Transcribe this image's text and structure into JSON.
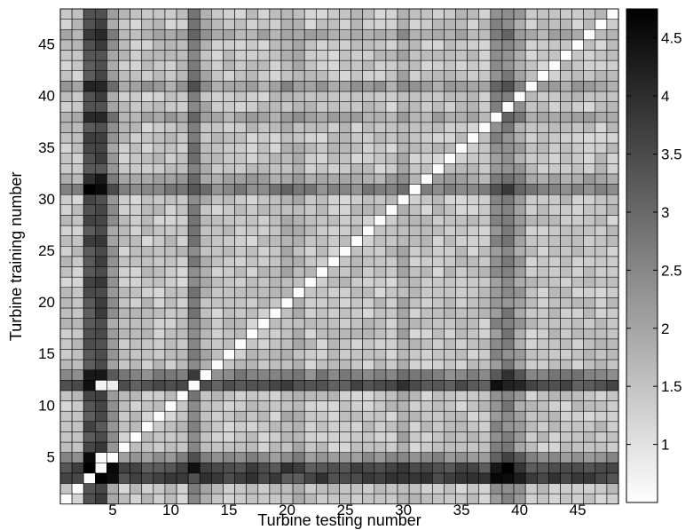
{
  "chart_data": {
    "type": "heatmap",
    "title": "",
    "xlabel": "Turbine testing number",
    "ylabel": "Turbine training number",
    "xlim": [
      1,
      48
    ],
    "ylim": [
      1,
      48
    ],
    "x_ticks": [
      "5",
      "10",
      "15",
      "20",
      "25",
      "30",
      "35",
      "40",
      "45"
    ],
    "x_tick_values": [
      5,
      10,
      15,
      20,
      25,
      30,
      35,
      40,
      45
    ],
    "y_ticks": [
      "5",
      "10",
      "15",
      "20",
      "25",
      "30",
      "35",
      "40",
      "45"
    ],
    "y_tick_values": [
      5,
      10,
      15,
      20,
      25,
      30,
      35,
      40,
      45
    ],
    "colorbar": {
      "min": 0.5,
      "max": 4.75,
      "ticks": [
        "1",
        "1.5",
        "2",
        "2.5",
        "3",
        "3.5",
        "4",
        "4.5"
      ],
      "tick_values": [
        1,
        1.5,
        2,
        2.5,
        3,
        3.5,
        4,
        4.5
      ],
      "colormap": "gray-reversed"
    },
    "grid": true,
    "colors": {
      "high": "#000000",
      "low": "#ffffff",
      "gridline": "#000000"
    },
    "base_value": 1.45,
    "row_strength": {
      "3": 2.2,
      "4": 2.0,
      "5": 0.9,
      "12": 1.9,
      "13": 1.1,
      "31": 1.1,
      "32": 0.5,
      "38": 0.5,
      "41": 0.6,
      "46": 0.4
    },
    "col_strength": {
      "3": 2.0,
      "4": 2.1,
      "5": 0.7,
      "12": 1.2,
      "13": 0.3,
      "20": 0.3,
      "21": 0.3,
      "30": 0.4,
      "38": 0.9,
      "39": 1.1,
      "40": 0.6
    },
    "specials": [
      [
        3,
        4,
        4.7
      ],
      [
        4,
        5,
        4.6
      ],
      [
        5,
        4,
        0.6
      ],
      [
        4,
        4,
        0.6
      ],
      [
        12,
        3,
        4.5
      ],
      [
        12,
        4,
        0.7
      ],
      [
        12,
        5,
        0.8
      ],
      [
        3,
        12,
        3.4
      ],
      [
        3,
        21,
        3.2
      ],
      [
        3,
        20,
        3.2
      ],
      [
        31,
        12,
        3.3
      ],
      [
        46,
        3,
        3.8
      ]
    ]
  }
}
